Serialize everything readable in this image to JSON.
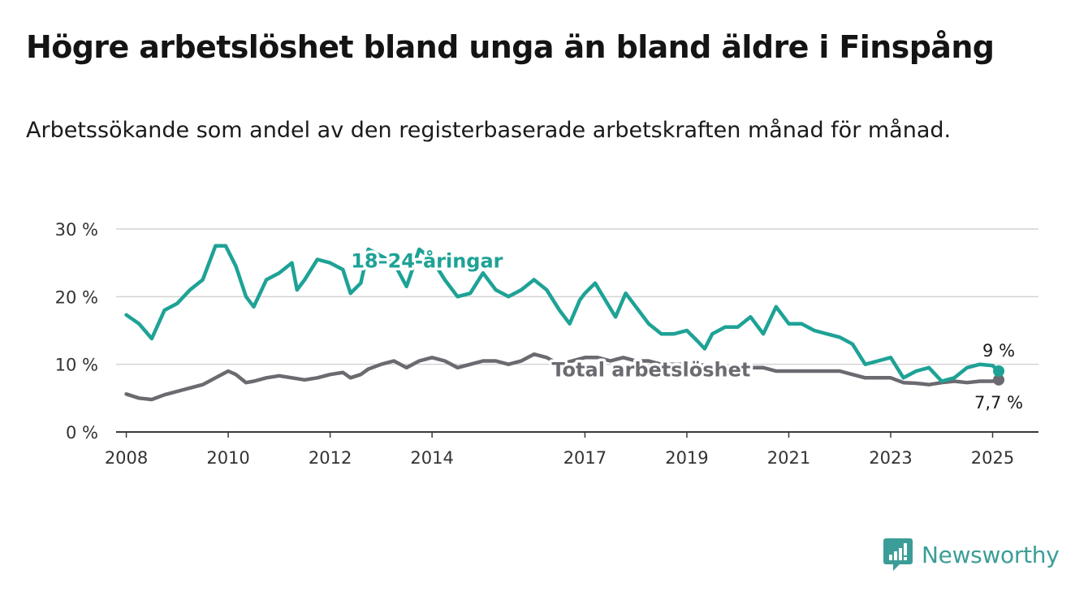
{
  "header": {
    "title": "Högre arbetslöshet bland unga än bland äldre i Finspång",
    "subtitle": "Arbetssökande som andel av den registerbaserade arbetskraften månad för månad."
  },
  "brand": {
    "name": "Newsworthy",
    "icon": "newsworthy-logo-icon",
    "color": "#3b9d97"
  },
  "chart_data": {
    "type": "line",
    "y_ticks": [
      "0 %",
      "10 %",
      "20 %",
      "30 %"
    ],
    "y_tick_values": [
      0,
      10,
      20,
      30
    ],
    "ylim": [
      0,
      30
    ],
    "x_ticks": [
      "2008",
      "2010",
      "2012",
      "2014",
      "2017",
      "2019",
      "2021",
      "2023",
      "2025"
    ],
    "x_tick_values": [
      2008,
      2010,
      2012,
      2014,
      2017,
      2019,
      2021,
      2023,
      2025
    ],
    "xlim": [
      2007.8,
      2025.9
    ],
    "grid": true,
    "series": [
      {
        "name": "18–24-åringar",
        "color": "#1ea296",
        "end_label": "9 %",
        "x": [
          2008.0,
          2008.25,
          2008.5,
          2008.75,
          2009.0,
          2009.25,
          2009.5,
          2009.75,
          2009.95,
          2010.15,
          2010.35,
          2010.5,
          2010.75,
          2011.0,
          2011.25,
          2011.35,
          2011.5,
          2011.75,
          2012.0,
          2012.25,
          2012.4,
          2012.6,
          2012.75,
          2013.0,
          2013.25,
          2013.5,
          2013.75,
          2014.0,
          2014.25,
          2014.5,
          2014.75,
          2015.0,
          2015.25,
          2015.5,
          2015.75,
          2016.0,
          2016.25,
          2016.5,
          2016.7,
          2016.9,
          2017.0,
          2017.2,
          2017.4,
          2017.6,
          2017.8,
          2018.0,
          2018.25,
          2018.5,
          2018.75,
          2019.0,
          2019.2,
          2019.35,
          2019.5,
          2019.75,
          2020.0,
          2020.25,
          2020.5,
          2020.75,
          2021.0,
          2021.25,
          2021.5,
          2021.75,
          2022.0,
          2022.25,
          2022.5,
          2022.75,
          2023.0,
          2023.25,
          2023.5,
          2023.75,
          2024.0,
          2024.25,
          2024.5,
          2024.75,
          2025.0,
          2025.12
        ],
        "values": [
          17.3,
          16,
          13.8,
          18,
          19,
          21,
          22.5,
          27.5,
          27.5,
          24.5,
          20,
          18.5,
          22.5,
          23.5,
          25,
          21,
          22.5,
          25.5,
          25,
          24,
          20.5,
          22,
          27,
          26,
          25,
          21.5,
          27,
          25.5,
          22.5,
          20,
          20.5,
          23.5,
          21,
          20,
          21,
          22.5,
          21,
          18,
          16,
          19.5,
          20.5,
          22,
          19.5,
          17,
          20.5,
          18.5,
          16,
          14.5,
          14.5,
          15,
          13.5,
          12.3,
          14.5,
          15.5,
          15.5,
          17,
          14.5,
          18.5,
          16,
          16,
          15,
          14.5,
          14,
          13,
          10,
          10.5,
          11,
          8,
          9,
          9.5,
          7.5,
          8,
          9.5,
          10,
          9.8,
          9
        ]
      },
      {
        "name": "Total arbetslöshet",
        "color": "#6c6a70",
        "end_label": "7,7 %",
        "x": [
          2008.0,
          2008.25,
          2008.5,
          2008.75,
          2009.0,
          2009.25,
          2009.5,
          2009.75,
          2010.0,
          2010.15,
          2010.35,
          2010.5,
          2010.75,
          2011.0,
          2011.25,
          2011.5,
          2011.75,
          2012.0,
          2012.25,
          2012.4,
          2012.6,
          2012.75,
          2013.0,
          2013.25,
          2013.5,
          2013.75,
          2014.0,
          2014.25,
          2014.5,
          2014.75,
          2015.0,
          2015.25,
          2015.5,
          2015.75,
          2016.0,
          2016.25,
          2016.5,
          2016.75,
          2017.0,
          2017.25,
          2017.5,
          2017.75,
          2018.0,
          2018.25,
          2018.5,
          2018.75,
          2019.0,
          2019.25,
          2019.5,
          2019.75,
          2020.0,
          2020.25,
          2020.5,
          2020.75,
          2021.0,
          2021.25,
          2021.5,
          2021.75,
          2022.0,
          2022.25,
          2022.5,
          2022.75,
          2023.0,
          2023.25,
          2023.5,
          2023.75,
          2024.0,
          2024.25,
          2024.5,
          2024.75,
          2025.0,
          2025.12
        ],
        "values": [
          5.6,
          5,
          4.8,
          5.5,
          6,
          6.5,
          7,
          8,
          9,
          8.5,
          7.3,
          7.5,
          8,
          8.3,
          8,
          7.7,
          8,
          8.5,
          8.8,
          8,
          8.5,
          9.3,
          10,
          10.5,
          9.5,
          10.5,
          11,
          10.5,
          9.5,
          10,
          10.5,
          10.5,
          10,
          10.5,
          11.5,
          11,
          10,
          10.5,
          11,
          11,
          10.5,
          11,
          10.5,
          10.5,
          10,
          10,
          10,
          10,
          9.5,
          9.5,
          9.5,
          9.5,
          9.5,
          9,
          9,
          9,
          9,
          9,
          9,
          8.5,
          8,
          8,
          8,
          7.3,
          7.2,
          7,
          7.3,
          7.5,
          7.3,
          7.5,
          7.5,
          7.7
        ]
      }
    ]
  }
}
